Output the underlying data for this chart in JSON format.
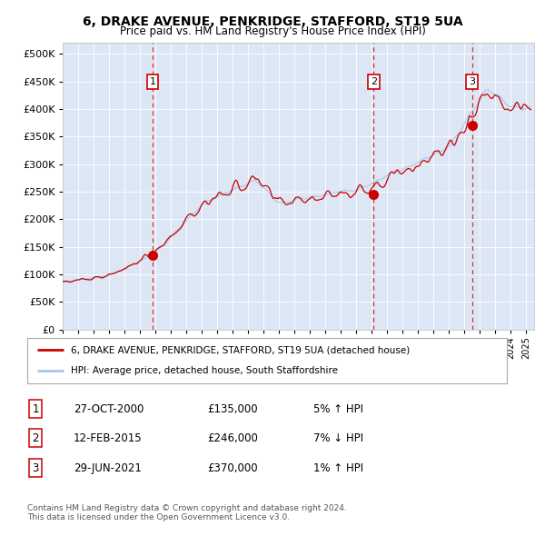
{
  "title": "6, DRAKE AVENUE, PENKRIDGE, STAFFORD, ST19 5UA",
  "subtitle": "Price paid vs. HM Land Registry's House Price Index (HPI)",
  "background_color": "#dce6f5",
  "plot_bg_color": "#dce6f5",
  "x_start_year": 1995.0,
  "x_end_year": 2025.5,
  "y_min": 0,
  "y_max": 520000,
  "y_ticks": [
    0,
    50000,
    100000,
    150000,
    200000,
    250000,
    300000,
    350000,
    400000,
    450000,
    500000
  ],
  "hpi_color": "#a8c8e8",
  "price_color": "#cc0000",
  "transactions": [
    {
      "label": "1",
      "date_decimal": 2000.82,
      "price": 135000,
      "date_str": "27-OCT-2000",
      "pct": "5%",
      "dir": "↑"
    },
    {
      "label": "2",
      "date_decimal": 2015.12,
      "price": 246000,
      "date_str": "12-FEB-2015",
      "pct": "7%",
      "dir": "↓"
    },
    {
      "label": "3",
      "date_decimal": 2021.49,
      "price": 370000,
      "date_str": "29-JUN-2021",
      "pct": "1%",
      "dir": "↑"
    }
  ],
  "legend_label_price": "6, DRAKE AVENUE, PENKRIDGE, STAFFORD, ST19 5UA (detached house)",
  "legend_label_hpi": "HPI: Average price, detached house, South Staffordshire",
  "footer_line1": "Contains HM Land Registry data © Crown copyright and database right 2024.",
  "footer_line2": "This data is licensed under the Open Government Licence v3.0.",
  "table_rows": [
    {
      "label": "1",
      "date": "27-OCT-2000",
      "price": "£135,000",
      "pct": "5% ↑ HPI"
    },
    {
      "label": "2",
      "date": "12-FEB-2015",
      "price": "£246,000",
      "pct": "7% ↓ HPI"
    },
    {
      "label": "3",
      "date": "29-JUN-2021",
      "price": "£370,000",
      "pct": "1% ↑ HPI"
    }
  ]
}
